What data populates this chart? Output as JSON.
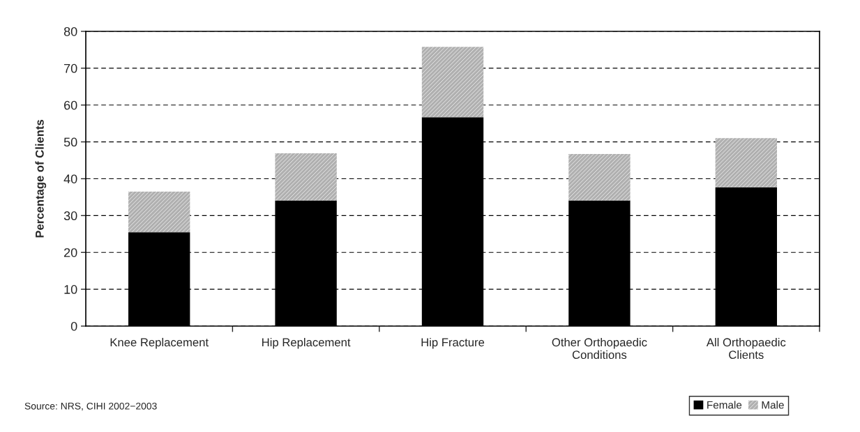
{
  "chart_data": {
    "type": "bar",
    "stacked": true,
    "ylabel": "Percentage of Clients",
    "categories": [
      "Knee Replacement",
      "Hip Replacement",
      "Hip Fracture",
      "Other Orthopaedic\nConditions",
      "All Orthopaedic\nClients"
    ],
    "series": [
      {
        "name": "Female",
        "color": "#000000",
        "values": [
          25.5,
          34.1,
          56.7,
          34.1,
          37.7
        ]
      },
      {
        "name": "Male",
        "color": "#b0b0b0",
        "values": [
          11.0,
          12.8,
          19.1,
          12.6,
          13.3
        ]
      }
    ],
    "ylim": [
      0,
      80
    ],
    "yticks": [
      0,
      10,
      20,
      30,
      40,
      50,
      60,
      70,
      80
    ],
    "grid": "y",
    "legend": "bottom right",
    "annotations": [
      "Source: NRS, CIHI 2002−2003"
    ]
  }
}
